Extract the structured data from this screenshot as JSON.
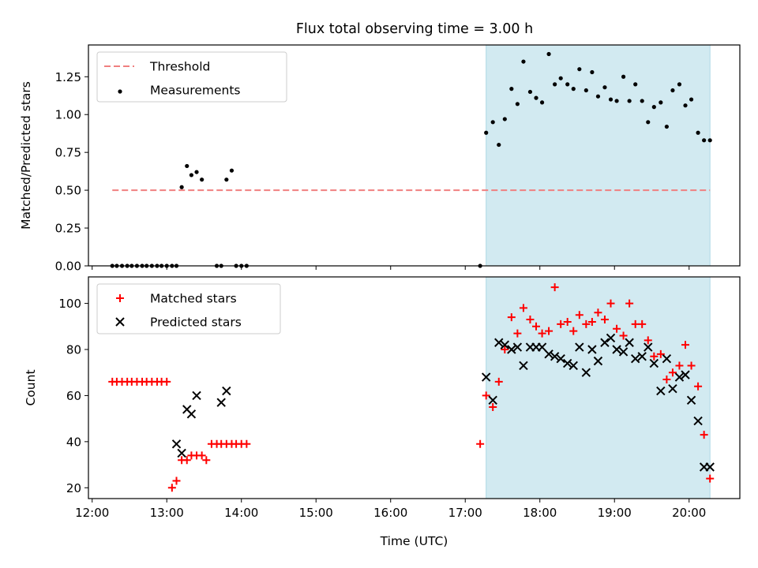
{
  "figure": {
    "title": "Flux total observing time = 3.00 h"
  },
  "colors": {
    "threshold": "#f08080",
    "measurements": "#000000",
    "matched": "#ff0000",
    "predicted": "#000000",
    "shaded_span": "#add8e6"
  },
  "chart_data": [
    {
      "type": "scatter",
      "panel": "top",
      "xlabel": "",
      "ylabel": "Matched/Predicted stars",
      "xlim": [
        11.95,
        20.68
      ],
      "ylim": [
        0.0,
        1.46
      ],
      "yticks": [
        0.0,
        0.25,
        0.5,
        0.75,
        1.0,
        1.25
      ],
      "ytick_labels": [
        "0.00",
        "0.25",
        "0.50",
        "0.75",
        "1.00",
        "1.25"
      ],
      "xticks": [
        12,
        13,
        14,
        15,
        16,
        17,
        18,
        19,
        20
      ],
      "grid": false,
      "legend_position": "top-left",
      "legend": [
        "Threshold",
        "Measurements"
      ],
      "shaded_span": [
        17.28,
        20.28
      ],
      "threshold": {
        "name": "Threshold",
        "x": [
          12.27,
          20.28
        ],
        "y": 0.5
      },
      "series": [
        {
          "name": "Measurements",
          "x": [
            12.27,
            12.33,
            12.4,
            12.47,
            12.53,
            12.6,
            12.67,
            12.73,
            12.8,
            12.87,
            12.93,
            13.0,
            13.07,
            13.13,
            13.2,
            13.27,
            13.33,
            13.4,
            13.47,
            13.67,
            13.73,
            13.8,
            13.87,
            13.93,
            14.0,
            14.07,
            17.2,
            17.28,
            17.37,
            17.45,
            17.53,
            17.62,
            17.7,
            17.78,
            17.87,
            17.95,
            18.03,
            18.12,
            18.2,
            18.28,
            18.37,
            18.45,
            18.53,
            18.62,
            18.7,
            18.78,
            18.87,
            18.95,
            19.03,
            19.12,
            19.2,
            19.28,
            19.37,
            19.45,
            19.53,
            19.62,
            19.7,
            19.78,
            19.87,
            19.95,
            20.03,
            20.12,
            20.2,
            20.28
          ],
          "y": [
            0.0,
            0.0,
            0.0,
            0.0,
            0.0,
            0.0,
            0.0,
            0.0,
            0.0,
            0.0,
            0.0,
            0.0,
            0.0,
            0.0,
            0.52,
            0.66,
            0.6,
            0.62,
            0.57,
            0.0,
            0.0,
            0.57,
            0.63,
            0.0,
            0.0,
            0.0,
            0.0,
            0.88,
            0.95,
            0.8,
            0.97,
            1.17,
            1.07,
            1.35,
            1.15,
            1.11,
            1.08,
            1.4,
            1.2,
            1.24,
            1.2,
            1.17,
            1.3,
            1.16,
            1.28,
            1.12,
            1.18,
            1.1,
            1.09,
            1.25,
            1.09,
            1.2,
            1.09,
            0.95,
            1.05,
            1.08,
            0.92,
            1.16,
            1.2,
            1.06,
            1.1,
            0.88,
            0.83,
            0.83
          ]
        }
      ]
    },
    {
      "type": "scatter",
      "panel": "bottom",
      "xlabel": "Time (UTC)",
      "ylabel": "Count",
      "xlim": [
        11.95,
        20.68
      ],
      "ylim": [
        15.3,
        111.5
      ],
      "yticks": [
        20,
        40,
        60,
        80,
        100
      ],
      "ytick_labels": [
        "20",
        "40",
        "60",
        "80",
        "100"
      ],
      "xticks": [
        12,
        13,
        14,
        15,
        16,
        17,
        18,
        19,
        20
      ],
      "xtick_labels": [
        "12:00",
        "13:00",
        "14:00",
        "15:00",
        "16:00",
        "17:00",
        "18:00",
        "19:00",
        "20:00"
      ],
      "grid": false,
      "legend_position": "top-left",
      "legend": [
        "Matched stars",
        "Predicted stars"
      ],
      "shaded_span": [
        17.28,
        20.28
      ],
      "series": [
        {
          "name": "Matched stars",
          "marker": "plus",
          "x": [
            12.27,
            12.33,
            12.4,
            12.47,
            12.53,
            12.6,
            12.67,
            12.73,
            12.8,
            12.87,
            12.93,
            13.0,
            13.07,
            13.13,
            13.2,
            13.27,
            13.33,
            13.4,
            13.47,
            13.53,
            13.6,
            13.67,
            13.73,
            13.8,
            13.87,
            13.93,
            14.0,
            14.07,
            17.2,
            17.28,
            17.37,
            17.45,
            17.53,
            17.62,
            17.7,
            17.78,
            17.87,
            17.95,
            18.03,
            18.12,
            18.2,
            18.28,
            18.37,
            18.45,
            18.53,
            18.62,
            18.7,
            18.78,
            18.87,
            18.95,
            19.03,
            19.12,
            19.2,
            19.28,
            19.37,
            19.45,
            19.53,
            19.62,
            19.7,
            19.78,
            19.87,
            19.95,
            20.03,
            20.12,
            20.2,
            20.28
          ],
          "y": [
            66,
            66,
            66,
            66,
            66,
            66,
            66,
            66,
            66,
            66,
            66,
            66,
            20,
            23,
            32,
            32,
            34,
            34,
            34,
            32,
            39,
            39,
            39,
            39,
            39,
            39,
            39,
            39,
            39,
            60,
            55,
            66,
            80,
            94,
            87,
            98,
            93,
            90,
            87,
            88,
            107,
            91,
            92,
            88,
            95,
            91,
            92,
            96,
            93,
            100,
            89,
            86,
            100,
            91,
            91,
            84,
            77,
            78,
            67,
            70,
            73,
            82,
            73,
            64,
            43,
            24
          ]
        },
        {
          "name": "Predicted stars",
          "marker": "x",
          "x": [
            13.13,
            13.2,
            13.27,
            13.33,
            13.4,
            13.73,
            13.8,
            17.28,
            17.37,
            17.45,
            17.53,
            17.62,
            17.7,
            17.78,
            17.87,
            17.95,
            18.03,
            18.12,
            18.2,
            18.28,
            18.37,
            18.45,
            18.53,
            18.62,
            18.7,
            18.78,
            18.87,
            18.95,
            19.03,
            19.12,
            19.2,
            19.28,
            19.37,
            19.45,
            19.53,
            19.62,
            19.7,
            19.78,
            19.87,
            19.95,
            20.03,
            20.12,
            20.2,
            20.28
          ],
          "y": [
            39,
            35,
            54,
            52,
            60,
            57,
            62,
            68,
            58,
            83,
            82,
            80,
            81,
            73,
            81,
            81,
            81,
            78,
            77,
            76,
            74,
            73,
            81,
            70,
            80,
            75,
            83,
            85,
            80,
            79,
            83,
            76,
            77,
            81,
            74,
            62,
            76,
            63,
            68,
            69,
            58,
            49,
            29,
            29
          ]
        }
      ]
    }
  ]
}
